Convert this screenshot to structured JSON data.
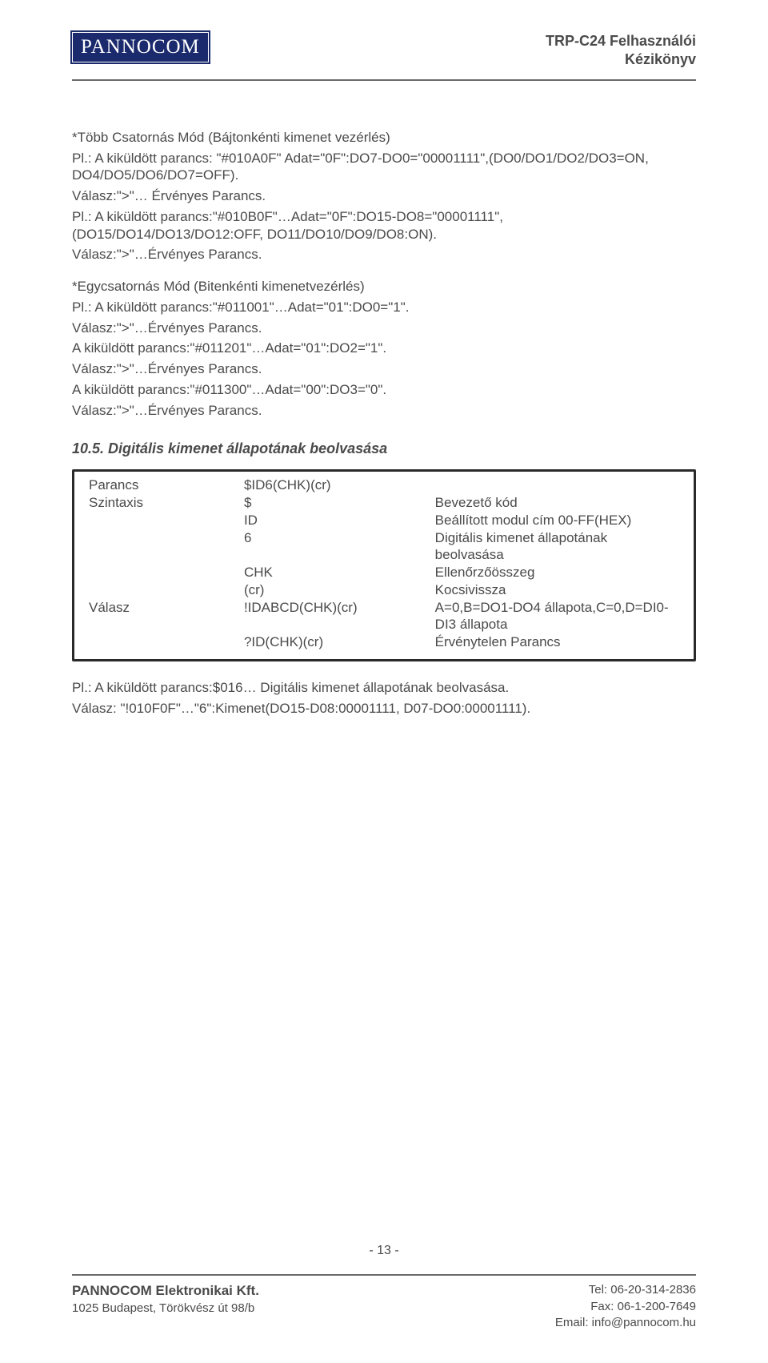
{
  "header": {
    "logo_text": "PANNOCOM",
    "title_line1": "TRP-C24 Felhasználói",
    "title_line2": "Kézikönyv"
  },
  "body": {
    "multi_title": "*Több Csatornás Mód (Bájtonkénti kimenet vezérlés)",
    "multi_l1": "Pl.: A kiküldött parancs: \"#010A0F\" Adat=\"0F\":DO7-DO0=\"00001111\",(DO0/DO1/DO2/DO3=ON, DO4/DO5/DO6/DO7=OFF).",
    "multi_l2": "Válasz:\">\"… Érvényes Parancs.",
    "multi_l3": "Pl.: A kiküldött parancs:\"#010B0F\"…Adat=\"0F\":DO15-DO8=\"00001111\", (DO15/DO14/DO13/DO12:OFF, DO11/DO10/DO9/DO8:ON).",
    "multi_l4": "Válasz:\">\"…Érvényes Parancs.",
    "single_title": "*Egycsatornás Mód (Bitenkénti kimenetvezérlés)",
    "single_l1": "Pl.: A kiküldött parancs:\"#011001\"…Adat=\"01\":DO0=\"1\".",
    "single_l2": "Válasz:\">\"…Érvényes Parancs.",
    "single_l3": "A kiküldött parancs:\"#011201\"…Adat=\"01\":DO2=\"1\".",
    "single_l4": "Válasz:\">\"…Érvényes Parancs.",
    "single_l5": "A kiküldött parancs:\"#011300\"…Adat=\"00\":DO3=\"0\".",
    "single_l6": "Válasz:\">\"…Érvényes Parancs."
  },
  "section": {
    "heading": "10.5. Digitális kimenet állapotának beolvasása"
  },
  "table": {
    "r0c0": "Parancs",
    "r0c1": "$ID6(CHK)(cr)",
    "r0c2": "",
    "r1c0": "Szintaxis",
    "r1c1": "$",
    "r1c2": "Bevezető kód",
    "r2c0": "",
    "r2c1": "ID",
    "r2c2": "Beállított modul cím 00-FF(HEX)",
    "r3c0": "",
    "r3c1": "6",
    "r3c2": "Digitális kimenet állapotának beolvasása",
    "r4c0": "",
    "r4c1": "CHK",
    "r4c2": "Ellenőrzőösszeg",
    "r5c0": "",
    "r5c1": "(cr)",
    "r5c2": "Kocsivissza",
    "r6c0": "Válasz",
    "r6c1": "!IDABCD(CHK)(cr)",
    "r6c2": "A=0,B=DO1-DO4 állapota,C=0,D=DI0-DI3 állapota",
    "r7c0": "",
    "r7c1": "?ID(CHK)(cr)",
    "r7c2": "Érvénytelen Parancs"
  },
  "after": {
    "l1": "Pl.: A kiküldött parancs:$016… Digitális kimenet állapotának beolvasása.",
    "l2": "Válasz: \"!010F0F\"…\"6\":Kimenet(DO15-D08:00001111, D07-DO0:00001111)."
  },
  "footer": {
    "page_number": "- 13 -",
    "company": "PANNOCOM Elektronikai Kft.",
    "address": "1025 Budapest, Törökvész út 98/b",
    "tel": "Tel: 06-20-314-2836",
    "fax": "Fax: 06-1-200-7649",
    "email": "Email: info@pannocom.hu"
  }
}
